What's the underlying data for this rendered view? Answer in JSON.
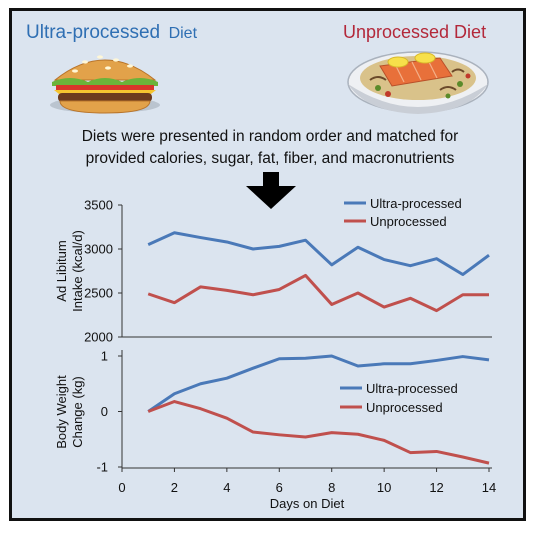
{
  "header": {
    "left_title_main": "Ultra-processed",
    "left_title_suffix": "Diet",
    "right_title": "Unprocessed Diet",
    "left_image": "burger-illustration",
    "right_image": "salmon-plate-illustration",
    "description_line1": "Diets were presented in random order and matched for",
    "description_line2": "provided calories, sugar, fat, fiber, and macronutrients",
    "arrow_icon": "down-arrow-icon"
  },
  "colors": {
    "ultra": "#4a79b8",
    "unprocessed": "#c0504d",
    "left_title": "#2f6fb3",
    "right_title": "#b3283a",
    "panel_bg": "#dbe4ef"
  },
  "chart_data": [
    {
      "type": "line",
      "ylabel_line1": "Ad Libitum",
      "ylabel_line2": "Intake (kcal/d)",
      "ylim": [
        2000,
        3500
      ],
      "yticks": [
        2000,
        2500,
        3000,
        3500
      ],
      "x": [
        1,
        2,
        3,
        4,
        5,
        6,
        7,
        8,
        9,
        10,
        11,
        12,
        13,
        14
      ],
      "legend_position": "top-right",
      "series": [
        {
          "name": "Ultra-processed",
          "values": [
            3050,
            3185,
            3130,
            3080,
            3000,
            3030,
            3100,
            2820,
            3020,
            2880,
            2810,
            2890,
            2710,
            2930
          ]
        },
        {
          "name": "Unprocessed",
          "values": [
            2490,
            2390,
            2570,
            2530,
            2480,
            2540,
            2700,
            2370,
            2500,
            2340,
            2440,
            2300,
            2480,
            2480
          ]
        }
      ]
    },
    {
      "type": "line",
      "ylabel_line1": "Body Weight",
      "ylabel_line2": "Change (kg)",
      "xlabel": "Days on Diet",
      "ylim": [
        -1,
        1
      ],
      "yticks": [
        -1,
        0,
        1
      ],
      "xlim": [
        0,
        14
      ],
      "xticks": [
        0,
        2,
        4,
        6,
        8,
        10,
        12,
        14
      ],
      "x": [
        1,
        2,
        3,
        4,
        5,
        6,
        7,
        8,
        9,
        10,
        11,
        12,
        13,
        14
      ],
      "legend_position": "middle-right",
      "series": [
        {
          "name": "Ultra-processed",
          "values": [
            0.0,
            0.32,
            0.5,
            0.6,
            0.78,
            0.95,
            0.96,
            1.0,
            0.82,
            0.86,
            0.86,
            0.92,
            0.99,
            0.93
          ]
        },
        {
          "name": "Unprocessed",
          "values": [
            0.0,
            0.18,
            0.05,
            -0.12,
            -0.37,
            -0.42,
            -0.46,
            -0.38,
            -0.41,
            -0.52,
            -0.74,
            -0.72,
            -0.82,
            -0.93
          ]
        }
      ]
    }
  ]
}
